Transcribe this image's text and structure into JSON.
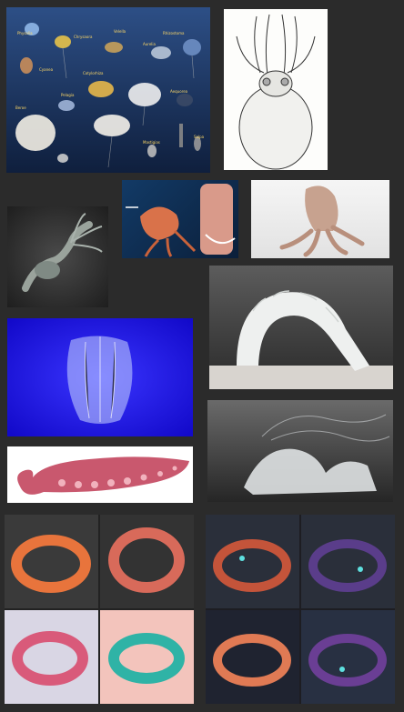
{
  "poster": {
    "title": "",
    "species": [
      {
        "name": "Physalia"
      },
      {
        "name": "Chrysaora"
      },
      {
        "name": "Velella"
      },
      {
        "name": "Aurelia"
      },
      {
        "name": "Rhizostoma"
      },
      {
        "name": "Cyanea"
      },
      {
        "name": "Pelagia"
      },
      {
        "name": "Cotylorhiza"
      },
      {
        "name": "Aequorea"
      },
      {
        "name": "Beroe"
      },
      {
        "name": "Mastigias"
      },
      {
        "name": "Salpa"
      }
    ]
  },
  "colors": {
    "background": "#2b2b2b",
    "poster_bg": "#1f3a6b",
    "ctenophore_bg": "#1a12e8",
    "tentacle": "#c9586e",
    "bracelet_orange": "#e8743c",
    "bracelet_teal": "#2fb3a6",
    "octo_purple": "#5a3d8a"
  }
}
